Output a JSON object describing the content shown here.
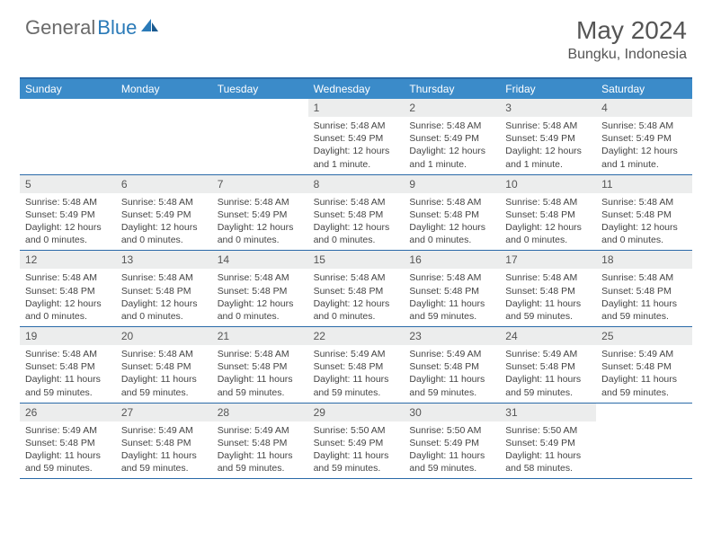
{
  "logo": {
    "part1": "General",
    "part2": "Blue"
  },
  "title": "May 2024",
  "location": "Bungku, Indonesia",
  "colors": {
    "headerBlue": "#3b8bc9",
    "borderBlue": "#2a6aa8",
    "dayNumBg": "#eceded",
    "logoGray": "#6a6a6a",
    "logoBlue": "#2a7ab8",
    "textGray": "#555555"
  },
  "dayHeaders": [
    "Sunday",
    "Monday",
    "Tuesday",
    "Wednesday",
    "Thursday",
    "Friday",
    "Saturday"
  ],
  "weeks": [
    [
      {
        "num": "",
        "sunrise": "",
        "sunset": "",
        "daylight": ""
      },
      {
        "num": "",
        "sunrise": "",
        "sunset": "",
        "daylight": ""
      },
      {
        "num": "",
        "sunrise": "",
        "sunset": "",
        "daylight": ""
      },
      {
        "num": "1",
        "sunrise": "Sunrise: 5:48 AM",
        "sunset": "Sunset: 5:49 PM",
        "daylight": "Daylight: 12 hours and 1 minute."
      },
      {
        "num": "2",
        "sunrise": "Sunrise: 5:48 AM",
        "sunset": "Sunset: 5:49 PM",
        "daylight": "Daylight: 12 hours and 1 minute."
      },
      {
        "num": "3",
        "sunrise": "Sunrise: 5:48 AM",
        "sunset": "Sunset: 5:49 PM",
        "daylight": "Daylight: 12 hours and 1 minute."
      },
      {
        "num": "4",
        "sunrise": "Sunrise: 5:48 AM",
        "sunset": "Sunset: 5:49 PM",
        "daylight": "Daylight: 12 hours and 1 minute."
      }
    ],
    [
      {
        "num": "5",
        "sunrise": "Sunrise: 5:48 AM",
        "sunset": "Sunset: 5:49 PM",
        "daylight": "Daylight: 12 hours and 0 minutes."
      },
      {
        "num": "6",
        "sunrise": "Sunrise: 5:48 AM",
        "sunset": "Sunset: 5:49 PM",
        "daylight": "Daylight: 12 hours and 0 minutes."
      },
      {
        "num": "7",
        "sunrise": "Sunrise: 5:48 AM",
        "sunset": "Sunset: 5:49 PM",
        "daylight": "Daylight: 12 hours and 0 minutes."
      },
      {
        "num": "8",
        "sunrise": "Sunrise: 5:48 AM",
        "sunset": "Sunset: 5:48 PM",
        "daylight": "Daylight: 12 hours and 0 minutes."
      },
      {
        "num": "9",
        "sunrise": "Sunrise: 5:48 AM",
        "sunset": "Sunset: 5:48 PM",
        "daylight": "Daylight: 12 hours and 0 minutes."
      },
      {
        "num": "10",
        "sunrise": "Sunrise: 5:48 AM",
        "sunset": "Sunset: 5:48 PM",
        "daylight": "Daylight: 12 hours and 0 minutes."
      },
      {
        "num": "11",
        "sunrise": "Sunrise: 5:48 AM",
        "sunset": "Sunset: 5:48 PM",
        "daylight": "Daylight: 12 hours and 0 minutes."
      }
    ],
    [
      {
        "num": "12",
        "sunrise": "Sunrise: 5:48 AM",
        "sunset": "Sunset: 5:48 PM",
        "daylight": "Daylight: 12 hours and 0 minutes."
      },
      {
        "num": "13",
        "sunrise": "Sunrise: 5:48 AM",
        "sunset": "Sunset: 5:48 PM",
        "daylight": "Daylight: 12 hours and 0 minutes."
      },
      {
        "num": "14",
        "sunrise": "Sunrise: 5:48 AM",
        "sunset": "Sunset: 5:48 PM",
        "daylight": "Daylight: 12 hours and 0 minutes."
      },
      {
        "num": "15",
        "sunrise": "Sunrise: 5:48 AM",
        "sunset": "Sunset: 5:48 PM",
        "daylight": "Daylight: 12 hours and 0 minutes."
      },
      {
        "num": "16",
        "sunrise": "Sunrise: 5:48 AM",
        "sunset": "Sunset: 5:48 PM",
        "daylight": "Daylight: 11 hours and 59 minutes."
      },
      {
        "num": "17",
        "sunrise": "Sunrise: 5:48 AM",
        "sunset": "Sunset: 5:48 PM",
        "daylight": "Daylight: 11 hours and 59 minutes."
      },
      {
        "num": "18",
        "sunrise": "Sunrise: 5:48 AM",
        "sunset": "Sunset: 5:48 PM",
        "daylight": "Daylight: 11 hours and 59 minutes."
      }
    ],
    [
      {
        "num": "19",
        "sunrise": "Sunrise: 5:48 AM",
        "sunset": "Sunset: 5:48 PM",
        "daylight": "Daylight: 11 hours and 59 minutes."
      },
      {
        "num": "20",
        "sunrise": "Sunrise: 5:48 AM",
        "sunset": "Sunset: 5:48 PM",
        "daylight": "Daylight: 11 hours and 59 minutes."
      },
      {
        "num": "21",
        "sunrise": "Sunrise: 5:48 AM",
        "sunset": "Sunset: 5:48 PM",
        "daylight": "Daylight: 11 hours and 59 minutes."
      },
      {
        "num": "22",
        "sunrise": "Sunrise: 5:49 AM",
        "sunset": "Sunset: 5:48 PM",
        "daylight": "Daylight: 11 hours and 59 minutes."
      },
      {
        "num": "23",
        "sunrise": "Sunrise: 5:49 AM",
        "sunset": "Sunset: 5:48 PM",
        "daylight": "Daylight: 11 hours and 59 minutes."
      },
      {
        "num": "24",
        "sunrise": "Sunrise: 5:49 AM",
        "sunset": "Sunset: 5:48 PM",
        "daylight": "Daylight: 11 hours and 59 minutes."
      },
      {
        "num": "25",
        "sunrise": "Sunrise: 5:49 AM",
        "sunset": "Sunset: 5:48 PM",
        "daylight": "Daylight: 11 hours and 59 minutes."
      }
    ],
    [
      {
        "num": "26",
        "sunrise": "Sunrise: 5:49 AM",
        "sunset": "Sunset: 5:48 PM",
        "daylight": "Daylight: 11 hours and 59 minutes."
      },
      {
        "num": "27",
        "sunrise": "Sunrise: 5:49 AM",
        "sunset": "Sunset: 5:48 PM",
        "daylight": "Daylight: 11 hours and 59 minutes."
      },
      {
        "num": "28",
        "sunrise": "Sunrise: 5:49 AM",
        "sunset": "Sunset: 5:48 PM",
        "daylight": "Daylight: 11 hours and 59 minutes."
      },
      {
        "num": "29",
        "sunrise": "Sunrise: 5:50 AM",
        "sunset": "Sunset: 5:49 PM",
        "daylight": "Daylight: 11 hours and 59 minutes."
      },
      {
        "num": "30",
        "sunrise": "Sunrise: 5:50 AM",
        "sunset": "Sunset: 5:49 PM",
        "daylight": "Daylight: 11 hours and 59 minutes."
      },
      {
        "num": "31",
        "sunrise": "Sunrise: 5:50 AM",
        "sunset": "Sunset: 5:49 PM",
        "daylight": "Daylight: 11 hours and 58 minutes."
      },
      {
        "num": "",
        "sunrise": "",
        "sunset": "",
        "daylight": ""
      }
    ]
  ]
}
